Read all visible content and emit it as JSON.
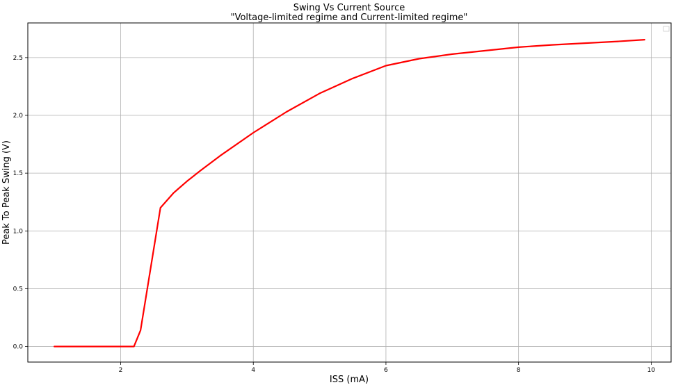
{
  "chart_data": {
    "type": "line",
    "title": "Swing Vs Current Source",
    "subtitle": "\"Voltage-limited regime and Current-limited regime\"",
    "xlabel": "ISS (mA)",
    "ylabel": "Peak To Peak Swing (V)",
    "xlim": [
      0.6,
      10.3
    ],
    "ylim": [
      -0.135,
      2.8
    ],
    "x_ticks": [
      2,
      4,
      6,
      8,
      10
    ],
    "y_ticks": [
      0.0,
      0.5,
      1.0,
      1.5,
      2.0,
      2.5
    ],
    "x_tick_labels": [
      "2",
      "4",
      "6",
      "8",
      "10"
    ],
    "y_tick_labels": [
      "0.0",
      "0.5",
      "1.0",
      "1.5",
      "2.0",
      "2.5"
    ],
    "grid": true,
    "legend": "top-right, empty",
    "series": [
      {
        "color": "#ff0000",
        "x": [
          1.0,
          1.5,
          2.0,
          2.2,
          2.3,
          2.6,
          2.8,
          3.0,
          3.2,
          3.5,
          4.0,
          4.5,
          5.0,
          5.5,
          6.0,
          6.5,
          7.0,
          7.5,
          8.0,
          8.5,
          9.0,
          9.5,
          9.9
        ],
        "y": [
          0.0,
          0.0,
          0.0,
          0.0,
          0.14,
          1.2,
          1.33,
          1.43,
          1.52,
          1.65,
          1.85,
          2.03,
          2.19,
          2.32,
          2.43,
          2.49,
          2.53,
          2.56,
          2.59,
          2.61,
          2.625,
          2.64,
          2.655
        ]
      }
    ]
  }
}
